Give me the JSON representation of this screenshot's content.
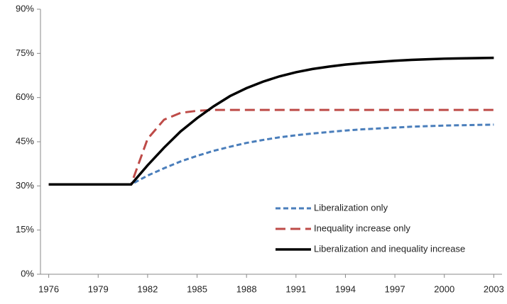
{
  "chart_data": {
    "type": "line",
    "x": [
      1976,
      1977,
      1978,
      1979,
      1980,
      1981,
      1982,
      1983,
      1984,
      1985,
      1986,
      1987,
      1988,
      1989,
      1990,
      1991,
      1992,
      1993,
      1994,
      1995,
      1996,
      1997,
      1998,
      1999,
      2000,
      2001,
      2002,
      2003
    ],
    "series": [
      {
        "name": "Liberalization only",
        "color": "#4a7ebb",
        "dash": "7,4",
        "width": 3,
        "values": [
          30.5,
          30.5,
          30.5,
          30.5,
          30.5,
          30.5,
          33.5,
          36,
          38.3,
          40.2,
          41.9,
          43.3,
          44.6,
          45.6,
          46.5,
          47.2,
          47.8,
          48.3,
          48.8,
          49.2,
          49.5,
          49.8,
          50.1,
          50.3,
          50.5,
          50.6,
          50.7,
          50.8
        ]
      },
      {
        "name": "Inequality increase only",
        "color": "#be4b48",
        "dash": "14,7",
        "width": 3,
        "values": [
          30.5,
          30.5,
          30.5,
          30.5,
          30.5,
          30.5,
          46,
          52.5,
          54.8,
          55.5,
          55.8,
          55.8,
          55.8,
          55.8,
          55.8,
          55.8,
          55.8,
          55.8,
          55.8,
          55.8,
          55.8,
          55.8,
          55.8,
          55.8,
          55.8,
          55.8,
          55.8,
          55.8
        ]
      },
      {
        "name": "Liberalization and inequality increase",
        "color": "#000000",
        "dash": "none",
        "width": 3.5,
        "values": [
          30.5,
          30.5,
          30.5,
          30.5,
          30.5,
          30.5,
          37,
          43,
          48.5,
          53,
          57,
          60.5,
          63.2,
          65.4,
          67.2,
          68.6,
          69.7,
          70.5,
          71.2,
          71.7,
          72.1,
          72.5,
          72.8,
          73,
          73.2,
          73.3,
          73.4,
          73.5
        ]
      }
    ],
    "xlim": [
      1975.5,
      2003.5
    ],
    "xticks": [
      1976,
      1979,
      1982,
      1985,
      1988,
      1991,
      1994,
      1997,
      2000,
      2003
    ],
    "ylim": [
      0,
      90
    ],
    "yticks": [
      {
        "value": 0,
        "label": "0%"
      },
      {
        "value": 15,
        "label": "15%"
      },
      {
        "value": 30,
        "label": "30%"
      },
      {
        "value": 45,
        "label": "45%"
      },
      {
        "value": 60,
        "label": "60%"
      },
      {
        "value": 75,
        "label": "75%"
      },
      {
        "value": 90,
        "label": "90%"
      }
    ],
    "grid": false,
    "legend": "lower-right"
  }
}
